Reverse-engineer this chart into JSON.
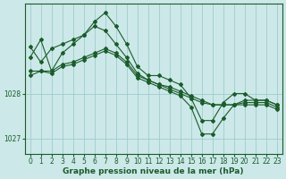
{
  "title": "Graphe pression niveau de la mer (hPa)",
  "bg_color": "#cce8e8",
  "grid_color": "#a0cccc",
  "line_color": "#1a5c2a",
  "marker_color": "#1a5c2a",
  "hours": [
    0,
    1,
    2,
    3,
    4,
    5,
    6,
    7,
    8,
    9,
    10,
    11,
    12,
    13,
    14,
    15,
    16,
    17,
    18,
    19,
    20,
    21,
    22,
    23
  ],
  "series1": [
    1028.8,
    1029.2,
    1028.5,
    1028.9,
    1029.1,
    1029.3,
    1029.6,
    1029.8,
    1029.5,
    1029.1,
    1028.6,
    1028.4,
    1028.4,
    1028.3,
    1028.2,
    1027.9,
    1027.4,
    1027.4,
    1027.8,
    1028.0,
    1028.0,
    1027.85,
    1027.85,
    1027.75
  ],
  "series2": [
    1029.05,
    1028.7,
    1029.0,
    1029.1,
    1029.2,
    1029.3,
    1029.5,
    1029.4,
    1029.1,
    1028.8,
    1028.45,
    1028.3,
    1028.2,
    1028.15,
    1028.05,
    1027.95,
    1027.85,
    1027.75,
    1027.75,
    1027.75,
    1027.85,
    1027.85,
    1027.85,
    1027.75
  ],
  "series3": [
    1028.5,
    1028.5,
    1028.5,
    1028.65,
    1028.7,
    1028.8,
    1028.9,
    1029.0,
    1028.9,
    1028.7,
    1028.4,
    1028.3,
    1028.2,
    1028.1,
    1028.0,
    1027.9,
    1027.8,
    1027.75,
    1027.75,
    1027.75,
    1027.8,
    1027.8,
    1027.8,
    1027.7
  ],
  "series4": [
    1028.4,
    1028.5,
    1028.45,
    1028.6,
    1028.65,
    1028.75,
    1028.85,
    1028.95,
    1028.85,
    1028.65,
    1028.35,
    1028.25,
    1028.15,
    1028.05,
    1027.95,
    1027.7,
    1027.1,
    1027.1,
    1027.45,
    1027.75,
    1027.75,
    1027.75,
    1027.75,
    1027.65
  ],
  "ylim": [
    1026.65,
    1030.0
  ],
  "yticks": [
    1027,
    1028
  ],
  "xticks": [
    0,
    1,
    2,
    3,
    4,
    5,
    6,
    7,
    8,
    9,
    10,
    11,
    12,
    13,
    14,
    15,
    16,
    17,
    18,
    19,
    20,
    21,
    22,
    23
  ],
  "tick_fontsize": 5.5,
  "title_fontsize": 6.5,
  "title_color": "#1a5c2a",
  "axis_color": "#1a5c2a"
}
